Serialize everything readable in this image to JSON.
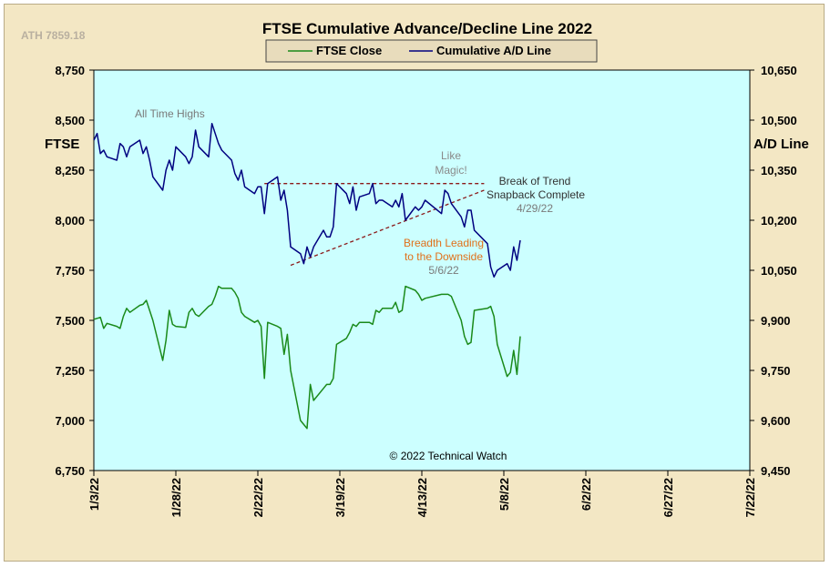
{
  "ath_label": "ATH 7859.18",
  "copyright": "© 2022 Technical Watch",
  "colors": {
    "plot_bg": "#ccffff",
    "frame_bg": "#f3e7c4",
    "ftse": "#1a8a1a",
    "ad": "#000080",
    "trend": "#8b1a1a",
    "annotation_gray": "#7a7a7a",
    "annotation_orange": "#e0701a",
    "annotation_dark": "#333333"
  },
  "annotations": {
    "all_time_highs": "All Time Highs",
    "like_magic_1": "Like",
    "like_magic_2": "Magic!",
    "break_1": "Break of Trend",
    "break_2": "Snapback Complete",
    "break_3": "4/29/22",
    "breadth_1": "Breadth Leading",
    "breadth_2": "to the Downside",
    "breadth_3": "5/6/22"
  },
  "chart_data": {
    "type": "line",
    "title": "FTSE Cumulative  Advance/Decline Line 2022",
    "ylabel_left": "FTSE",
    "ylabel_right": "A/D Line",
    "ylim_left": [
      6750,
      8750
    ],
    "ylim_right": [
      9450,
      10650
    ],
    "y_ticks_left": [
      "8,750",
      "8,500",
      "8,250",
      "8,000",
      "7,750",
      "7,500",
      "7,250",
      "7,000",
      "6,750"
    ],
    "y_ticks_right": [
      "10,650",
      "10,500",
      "10,350",
      "10,200",
      "10,050",
      "9,900",
      "9,750",
      "9,600",
      "9,450"
    ],
    "x_range": [
      "2022-01-03",
      "2022-07-22"
    ],
    "x_ticks": [
      "1/3/22",
      "1/28/22",
      "2/22/22",
      "3/19/22",
      "4/13/22",
      "5/8/22",
      "6/2/22",
      "6/27/22",
      "7/22/22"
    ],
    "legend_position": "top-center",
    "grid": false,
    "series": [
      {
        "name": "FTSE Close",
        "axis": "left",
        "x": [
          "2022-01-03",
          "2022-01-04",
          "2022-01-05",
          "2022-01-06",
          "2022-01-07",
          "2022-01-10",
          "2022-01-11",
          "2022-01-12",
          "2022-01-13",
          "2022-01-14",
          "2022-01-17",
          "2022-01-18",
          "2022-01-19",
          "2022-01-20",
          "2022-01-21",
          "2022-01-24",
          "2022-01-25",
          "2022-01-26",
          "2022-01-27",
          "2022-01-28",
          "2022-01-31",
          "2022-02-01",
          "2022-02-02",
          "2022-02-03",
          "2022-02-04",
          "2022-02-07",
          "2022-02-08",
          "2022-02-09",
          "2022-02-10",
          "2022-02-11",
          "2022-02-14",
          "2022-02-15",
          "2022-02-16",
          "2022-02-17",
          "2022-02-18",
          "2022-02-21",
          "2022-02-22",
          "2022-02-23",
          "2022-02-24",
          "2022-02-25",
          "2022-02-28",
          "2022-03-01",
          "2022-03-02",
          "2022-03-03",
          "2022-03-04",
          "2022-03-07",
          "2022-03-08",
          "2022-03-09",
          "2022-03-10",
          "2022-03-11",
          "2022-03-14",
          "2022-03-15",
          "2022-03-16",
          "2022-03-17",
          "2022-03-18",
          "2022-03-21",
          "2022-03-22",
          "2022-03-23",
          "2022-03-24",
          "2022-03-25",
          "2022-03-28",
          "2022-03-29",
          "2022-03-30",
          "2022-03-31",
          "2022-04-01",
          "2022-04-04",
          "2022-04-05",
          "2022-04-06",
          "2022-04-07",
          "2022-04-08",
          "2022-04-11",
          "2022-04-12",
          "2022-04-13",
          "2022-04-14",
          "2022-04-19",
          "2022-04-20",
          "2022-04-21",
          "2022-04-22",
          "2022-04-25",
          "2022-04-26",
          "2022-04-27",
          "2022-04-28",
          "2022-04-29",
          "2022-05-03",
          "2022-05-04",
          "2022-05-05",
          "2022-05-06",
          "2022-05-09",
          "2022-05-10",
          "2022-05-11",
          "2022-05-12",
          "2022-05-13"
        ],
        "values": [
          7505,
          7510,
          7515,
          7460,
          7485,
          7470,
          7460,
          7520,
          7560,
          7540,
          7575,
          7580,
          7600,
          7550,
          7500,
          7300,
          7400,
          7550,
          7480,
          7470,
          7465,
          7540,
          7560,
          7530,
          7520,
          7570,
          7580,
          7620,
          7670,
          7660,
          7660,
          7640,
          7610,
          7540,
          7520,
          7490,
          7500,
          7470,
          7210,
          7490,
          7470,
          7460,
          7330,
          7430,
          7250,
          7000,
          6980,
          6960,
          7180,
          7100,
          7160,
          7180,
          7180,
          7210,
          7380,
          7410,
          7440,
          7480,
          7470,
          7490,
          7490,
          7480,
          7550,
          7540,
          7560,
          7560,
          7590,
          7540,
          7550,
          7670,
          7650,
          7630,
          7600,
          7610,
          7630,
          7630,
          7630,
          7620,
          7500,
          7420,
          7380,
          7390,
          7550,
          7560,
          7570,
          7520,
          7380,
          7220,
          7240,
          7350,
          7230,
          7420
        ]
      },
      {
        "name": "Cumulative A/D Line",
        "axis": "right",
        "x": [
          "2022-01-03",
          "2022-01-04",
          "2022-01-05",
          "2022-01-06",
          "2022-01-07",
          "2022-01-10",
          "2022-01-11",
          "2022-01-12",
          "2022-01-13",
          "2022-01-14",
          "2022-01-17",
          "2022-01-18",
          "2022-01-19",
          "2022-01-20",
          "2022-01-21",
          "2022-01-24",
          "2022-01-25",
          "2022-01-26",
          "2022-01-27",
          "2022-01-28",
          "2022-01-31",
          "2022-02-01",
          "2022-02-02",
          "2022-02-03",
          "2022-02-04",
          "2022-02-07",
          "2022-02-08",
          "2022-02-09",
          "2022-02-10",
          "2022-02-11",
          "2022-02-14",
          "2022-02-15",
          "2022-02-16",
          "2022-02-17",
          "2022-02-18",
          "2022-02-21",
          "2022-02-22",
          "2022-02-23",
          "2022-02-24",
          "2022-02-25",
          "2022-02-28",
          "2022-03-01",
          "2022-03-02",
          "2022-03-03",
          "2022-03-04",
          "2022-03-07",
          "2022-03-08",
          "2022-03-09",
          "2022-03-10",
          "2022-03-11",
          "2022-03-14",
          "2022-03-15",
          "2022-03-16",
          "2022-03-17",
          "2022-03-18",
          "2022-03-21",
          "2022-03-22",
          "2022-03-23",
          "2022-03-24",
          "2022-03-25",
          "2022-03-28",
          "2022-03-29",
          "2022-03-30",
          "2022-03-31",
          "2022-04-01",
          "2022-04-04",
          "2022-04-05",
          "2022-04-06",
          "2022-04-07",
          "2022-04-08",
          "2022-04-11",
          "2022-04-12",
          "2022-04-13",
          "2022-04-14",
          "2022-04-19",
          "2022-04-20",
          "2022-04-21",
          "2022-04-22",
          "2022-04-25",
          "2022-04-26",
          "2022-04-27",
          "2022-04-28",
          "2022-04-29",
          "2022-05-03",
          "2022-05-04",
          "2022-05-05",
          "2022-05-06",
          "2022-05-09",
          "2022-05-10",
          "2022-05-11",
          "2022-05-12",
          "2022-05-13"
        ],
        "values": [
          10440,
          10460,
          10400,
          10410,
          10390,
          10380,
          10430,
          10420,
          10390,
          10420,
          10440,
          10400,
          10420,
          10380,
          10330,
          10290,
          10350,
          10380,
          10350,
          10420,
          10390,
          10370,
          10390,
          10470,
          10420,
          10390,
          10490,
          10460,
          10430,
          10410,
          10380,
          10340,
          10320,
          10350,
          10300,
          10280,
          10300,
          10300,
          10220,
          10310,
          10330,
          10260,
          10290,
          10230,
          10120,
          10100,
          10070,
          10120,
          10090,
          10120,
          10170,
          10150,
          10150,
          10180,
          10310,
          10280,
          10250,
          10300,
          10230,
          10270,
          10280,
          10310,
          10250,
          10260,
          10260,
          10240,
          10260,
          10240,
          10280,
          10200,
          10240,
          10230,
          10240,
          10260,
          10220,
          10290,
          10280,
          10250,
          10210,
          10180,
          10230,
          10230,
          10170,
          10130,
          10060,
          10030,
          10050,
          10070,
          10050,
          10120,
          10080,
          10140
        ]
      }
    ],
    "trendlines": [
      {
        "from": [
          "2022-02-24",
          10310
        ],
        "to": [
          "2022-05-02",
          10310
        ]
      },
      {
        "from": [
          "2022-03-04",
          10065
        ],
        "to": [
          "2022-05-02",
          10290
        ]
      }
    ]
  }
}
